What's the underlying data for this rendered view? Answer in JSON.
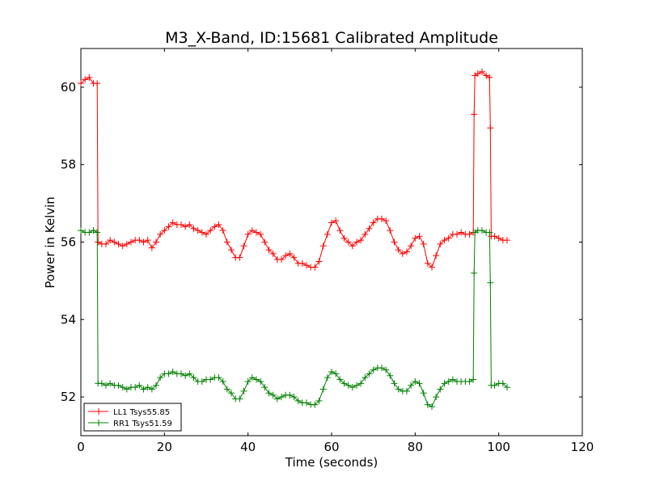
{
  "chart_data": {
    "type": "line",
    "title": "M3_X-Band, ID:15681 Calibrated Amplitude",
    "xlabel": "Time (seconds)",
    "ylabel": "Power in Kelvin",
    "xlim": [
      0,
      120
    ],
    "ylim": [
      51,
      61
    ],
    "xticks": [
      0,
      20,
      40,
      60,
      80,
      100,
      120
    ],
    "yticks": [
      52,
      54,
      56,
      58,
      60
    ],
    "grid": false,
    "legend_position": "lower-left",
    "series": [
      {
        "name": "LL1 Tsys55.85",
        "color": "#ff0000",
        "marker": "plus",
        "points": [
          [
            0,
            60.1
          ],
          [
            1,
            60.2
          ],
          [
            2,
            60.25
          ],
          [
            3,
            60.1
          ],
          [
            3.9,
            60.1
          ],
          [
            4.1,
            56.0
          ],
          [
            5,
            55.95
          ],
          [
            6,
            55.95
          ],
          [
            7,
            56.05
          ],
          [
            8,
            56.0
          ],
          [
            9,
            55.95
          ],
          [
            10,
            55.9
          ],
          [
            11,
            55.95
          ],
          [
            12,
            56.0
          ],
          [
            13,
            56.05
          ],
          [
            14,
            56.05
          ],
          [
            15,
            56.0
          ],
          [
            16,
            56.05
          ],
          [
            17,
            55.85
          ],
          [
            18,
            56.0
          ],
          [
            19,
            56.2
          ],
          [
            20,
            56.3
          ],
          [
            21,
            56.4
          ],
          [
            22,
            56.5
          ],
          [
            23,
            56.45
          ],
          [
            24,
            56.45
          ],
          [
            25,
            56.4
          ],
          [
            26,
            56.45
          ],
          [
            27,
            56.35
          ],
          [
            28,
            56.3
          ],
          [
            29,
            56.25
          ],
          [
            30,
            56.2
          ],
          [
            31,
            56.3
          ],
          [
            32,
            56.4
          ],
          [
            33,
            56.45
          ],
          [
            34,
            56.3
          ],
          [
            35,
            56.0
          ],
          [
            36,
            55.8
          ],
          [
            37,
            55.6
          ],
          [
            38,
            55.6
          ],
          [
            39,
            55.9
          ],
          [
            40,
            56.2
          ],
          [
            41,
            56.3
          ],
          [
            42,
            56.25
          ],
          [
            43,
            56.2
          ],
          [
            44,
            56.0
          ],
          [
            45,
            55.8
          ],
          [
            46,
            55.7
          ],
          [
            47,
            55.55
          ],
          [
            48,
            55.55
          ],
          [
            49,
            55.65
          ],
          [
            50,
            55.7
          ],
          [
            51,
            55.6
          ],
          [
            52,
            55.45
          ],
          [
            53,
            55.45
          ],
          [
            54,
            55.4
          ],
          [
            55,
            55.35
          ],
          [
            56,
            55.35
          ],
          [
            57,
            55.5
          ],
          [
            58,
            55.9
          ],
          [
            59,
            56.2
          ],
          [
            60,
            56.5
          ],
          [
            61,
            56.55
          ],
          [
            62,
            56.3
          ],
          [
            63,
            56.1
          ],
          [
            64,
            56.0
          ],
          [
            65,
            55.9
          ],
          [
            66,
            56.0
          ],
          [
            67,
            56.05
          ],
          [
            68,
            56.2
          ],
          [
            69,
            56.35
          ],
          [
            70,
            56.5
          ],
          [
            71,
            56.6
          ],
          [
            72,
            56.6
          ],
          [
            73,
            56.55
          ],
          [
            74,
            56.3
          ],
          [
            75,
            56.0
          ],
          [
            76,
            55.8
          ],
          [
            77,
            55.7
          ],
          [
            78,
            55.75
          ],
          [
            79,
            55.9
          ],
          [
            80,
            56.1
          ],
          [
            81,
            56.15
          ],
          [
            82,
            55.95
          ],
          [
            83,
            55.45
          ],
          [
            84,
            55.35
          ],
          [
            85,
            55.65
          ],
          [
            86,
            55.95
          ],
          [
            87,
            56.05
          ],
          [
            88,
            56.1
          ],
          [
            89,
            56.2
          ],
          [
            90,
            56.2
          ],
          [
            91,
            56.25
          ],
          [
            92,
            56.2
          ],
          [
            93,
            56.2
          ],
          [
            93.9,
            56.25
          ],
          [
            94.1,
            59.3
          ],
          [
            94.3,
            60.3
          ],
          [
            95,
            60.35
          ],
          [
            96,
            60.4
          ],
          [
            97,
            60.3
          ],
          [
            97.8,
            60.25
          ],
          [
            98,
            58.95
          ],
          [
            98.2,
            56.15
          ],
          [
            99,
            56.15
          ],
          [
            100,
            56.1
          ],
          [
            101,
            56.05
          ],
          [
            102,
            56.05
          ]
        ]
      },
      {
        "name": "RR1 Tsys51.59",
        "color": "#008000",
        "marker": "plus",
        "points": [
          [
            0,
            56.3
          ],
          [
            1,
            56.25
          ],
          [
            2,
            56.25
          ],
          [
            3,
            56.3
          ],
          [
            3.9,
            56.25
          ],
          [
            4.1,
            52.35
          ],
          [
            5,
            52.35
          ],
          [
            6,
            52.3
          ],
          [
            7,
            52.35
          ],
          [
            8,
            52.3
          ],
          [
            9,
            52.3
          ],
          [
            10,
            52.25
          ],
          [
            11,
            52.2
          ],
          [
            12,
            52.25
          ],
          [
            13,
            52.25
          ],
          [
            14,
            52.3
          ],
          [
            15,
            52.2
          ],
          [
            16,
            52.25
          ],
          [
            17,
            52.2
          ],
          [
            18,
            52.3
          ],
          [
            19,
            52.5
          ],
          [
            20,
            52.6
          ],
          [
            21,
            52.6
          ],
          [
            22,
            52.65
          ],
          [
            23,
            52.6
          ],
          [
            24,
            52.6
          ],
          [
            25,
            52.55
          ],
          [
            26,
            52.6
          ],
          [
            27,
            52.5
          ],
          [
            28,
            52.4
          ],
          [
            29,
            52.4
          ],
          [
            30,
            52.45
          ],
          [
            31,
            52.45
          ],
          [
            32,
            52.5
          ],
          [
            33,
            52.5
          ],
          [
            34,
            52.4
          ],
          [
            35,
            52.2
          ],
          [
            36,
            52.1
          ],
          [
            37,
            51.95
          ],
          [
            38,
            51.95
          ],
          [
            39,
            52.15
          ],
          [
            40,
            52.4
          ],
          [
            41,
            52.5
          ],
          [
            42,
            52.45
          ],
          [
            43,
            52.4
          ],
          [
            44,
            52.25
          ],
          [
            45,
            52.1
          ],
          [
            46,
            52.05
          ],
          [
            47,
            51.95
          ],
          [
            48,
            52.0
          ],
          [
            49,
            52.05
          ],
          [
            50,
            52.05
          ],
          [
            51,
            52.0
          ],
          [
            52,
            51.9
          ],
          [
            53,
            51.85
          ],
          [
            54,
            51.85
          ],
          [
            55,
            51.8
          ],
          [
            56,
            51.8
          ],
          [
            57,
            51.9
          ],
          [
            58,
            52.2
          ],
          [
            59,
            52.5
          ],
          [
            60,
            52.65
          ],
          [
            61,
            52.6
          ],
          [
            62,
            52.45
          ],
          [
            63,
            52.35
          ],
          [
            64,
            52.3
          ],
          [
            65,
            52.25
          ],
          [
            66,
            52.3
          ],
          [
            67,
            52.35
          ],
          [
            68,
            52.5
          ],
          [
            69,
            52.6
          ],
          [
            70,
            52.7
          ],
          [
            71,
            52.75
          ],
          [
            72,
            52.75
          ],
          [
            73,
            52.7
          ],
          [
            74,
            52.55
          ],
          [
            75,
            52.35
          ],
          [
            76,
            52.2
          ],
          [
            77,
            52.15
          ],
          [
            78,
            52.15
          ],
          [
            79,
            52.3
          ],
          [
            80,
            52.4
          ],
          [
            81,
            52.35
          ],
          [
            82,
            52.1
          ],
          [
            83,
            51.8
          ],
          [
            84,
            51.75
          ],
          [
            85,
            52.0
          ],
          [
            86,
            52.2
          ],
          [
            87,
            52.35
          ],
          [
            88,
            52.4
          ],
          [
            89,
            52.45
          ],
          [
            90,
            52.4
          ],
          [
            91,
            52.4
          ],
          [
            92,
            52.4
          ],
          [
            93,
            52.4
          ],
          [
            93.9,
            52.45
          ],
          [
            94.1,
            55.2
          ],
          [
            94.3,
            56.25
          ],
          [
            95,
            56.3
          ],
          [
            96,
            56.3
          ],
          [
            97,
            56.25
          ],
          [
            97.8,
            56.25
          ],
          [
            98,
            54.95
          ],
          [
            98.2,
            52.3
          ],
          [
            99,
            52.3
          ],
          [
            100,
            52.35
          ],
          [
            101,
            52.35
          ],
          [
            102,
            52.25
          ]
        ]
      }
    ]
  }
}
